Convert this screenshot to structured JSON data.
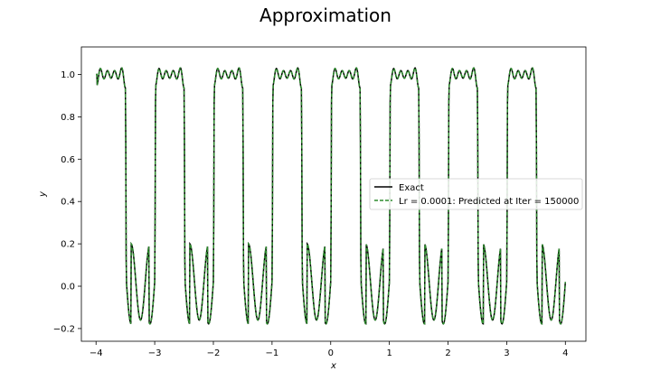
{
  "chart_data": {
    "type": "line",
    "title": "Approximation",
    "xlabel": "x",
    "ylabel": "y",
    "xlim": [
      -4.25,
      4.35
    ],
    "ylim": [
      -0.26,
      1.13
    ],
    "xticks": [
      -4,
      -3,
      -2,
      -1,
      0,
      1,
      2,
      3,
      4
    ],
    "xtick_labels": [
      "−4",
      "−3",
      "−2",
      "−1",
      "0",
      "1",
      "2",
      "3",
      "4"
    ],
    "yticks": [
      -0.2,
      0.0,
      0.2,
      0.4,
      0.6,
      0.8,
      1.0
    ],
    "ytick_labels": [
      "−0.2",
      "0.0",
      "0.2",
      "0.4",
      "0.6",
      "0.8",
      "1.0"
    ],
    "grid": false,
    "legend_position": "center-right",
    "x": [
      -4.0,
      -3.5,
      -3.0,
      -2.5,
      -2.0,
      -1.5,
      -1.0,
      -0.5,
      0.0,
      0.5,
      1.0,
      1.5,
      2.0,
      2.5,
      3.0,
      3.5,
      4.0
    ],
    "series": [
      {
        "name": "Exact",
        "color": "#000000",
        "style": "solid",
        "x": [
          -4.0,
          -3.5,
          -3.0,
          -2.5,
          -2.0,
          -1.5,
          -1.0,
          -0.5,
          0.0,
          0.5,
          1.0,
          1.5,
          2.0,
          2.5,
          3.0,
          3.5,
          4.0
        ],
        "values": [
          1.0,
          0.0,
          1.0,
          0.0,
          1.0,
          0.0,
          1.0,
          0.0,
          1.0,
          0.0,
          1.0,
          0.0,
          1.0,
          0.0,
          1.0,
          0.0,
          0.0
        ]
      },
      {
        "name": "Lr = 0.0001: Predicted at Iter = 150000",
        "color": "#2e8b2e",
        "style": "dashed",
        "x": [
          -4.0,
          -3.5,
          -3.0,
          -2.5,
          -2.0,
          -1.5,
          -1.0,
          -0.5,
          0.0,
          0.5,
          1.0,
          1.5,
          2.0,
          2.5,
          3.0,
          3.5,
          4.0
        ],
        "values": [
          1.0,
          0.0,
          1.0,
          0.0,
          1.0,
          0.0,
          1.0,
          0.0,
          1.0,
          0.0,
          1.0,
          0.0,
          1.0,
          0.0,
          1.0,
          0.0,
          0.0
        ]
      }
    ]
  }
}
